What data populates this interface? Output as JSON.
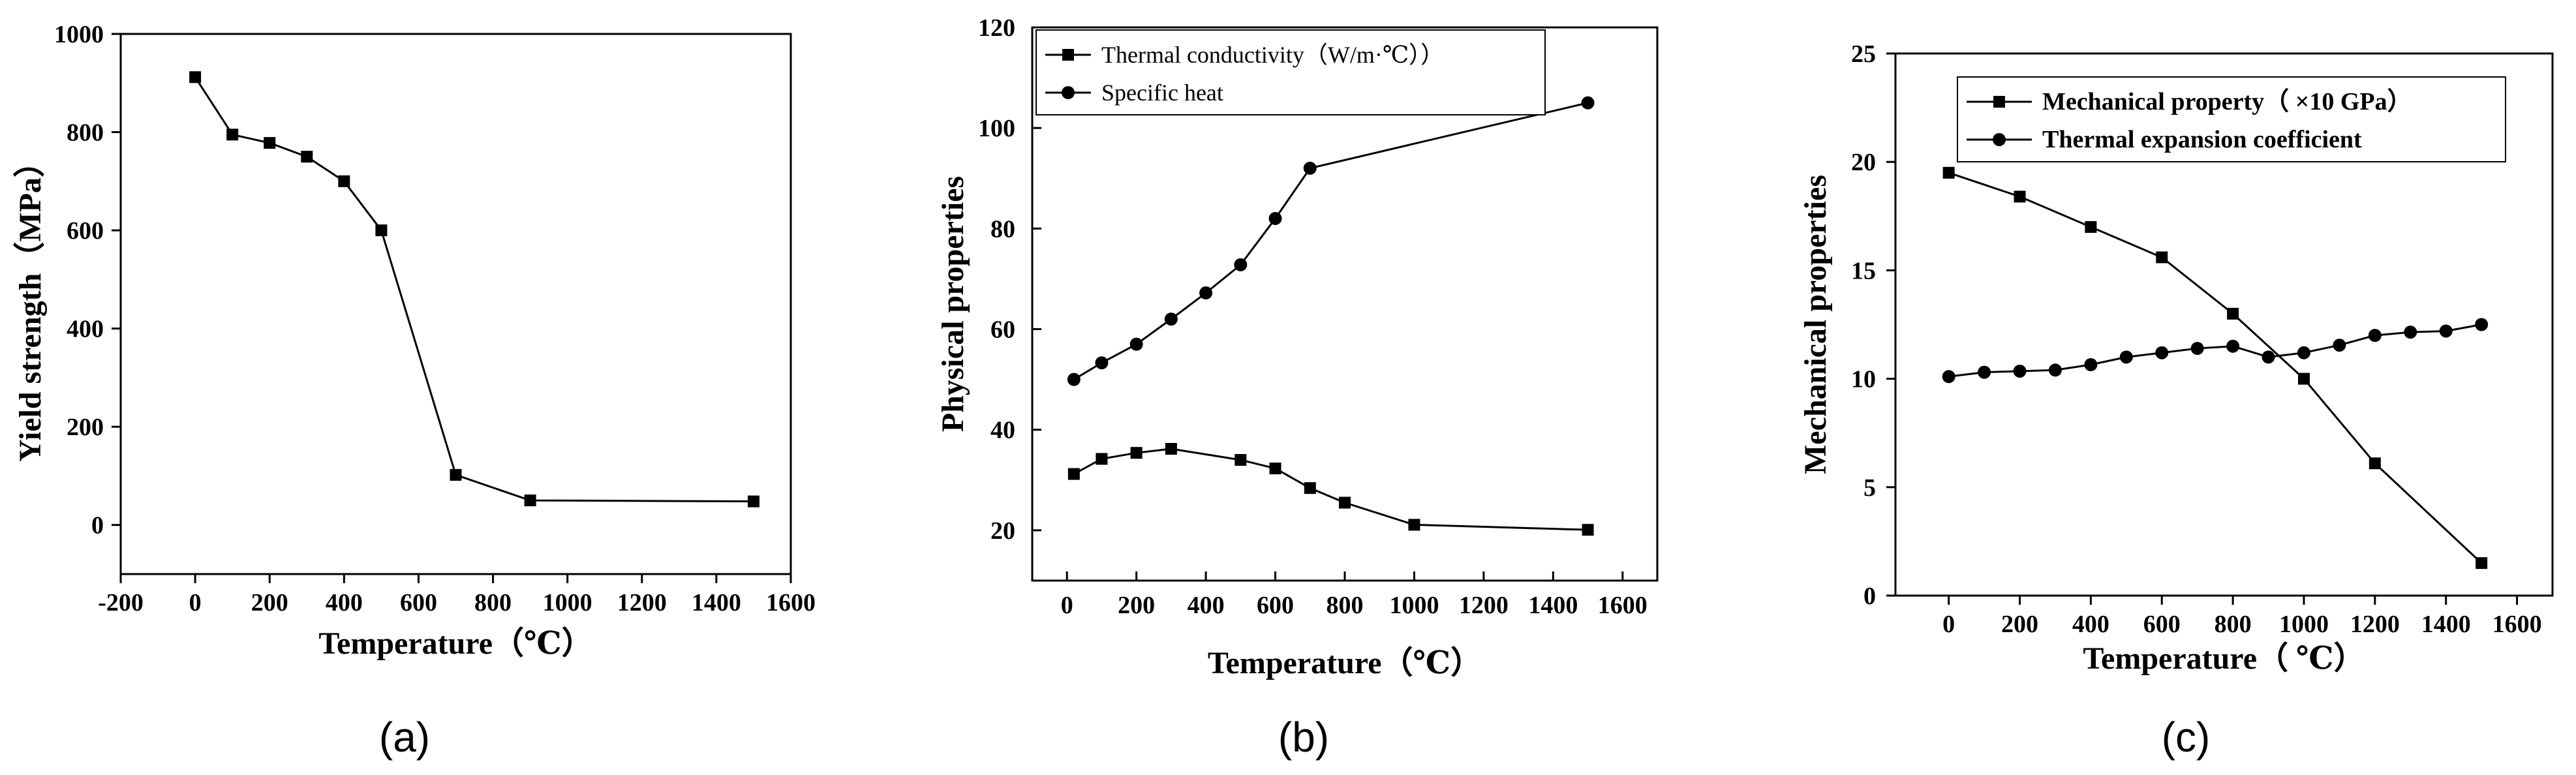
{
  "chart_data": [
    {
      "type": "line",
      "panel_label": "(a)",
      "xlabel": "Temperature（℃）",
      "ylabel": "Yield strength（MPa）",
      "xlim": [
        -200,
        1600
      ],
      "ylim": [
        -100,
        1000
      ],
      "xticks": [
        -200,
        0,
        200,
        400,
        600,
        800,
        1000,
        1200,
        1400,
        1600
      ],
      "yticks": [
        0,
        200,
        400,
        600,
        800,
        1000
      ],
      "legend": "none",
      "series": [
        {
          "name": "Yield strength",
          "marker": "square",
          "x": [
            0,
            100,
            200,
            300,
            400,
            500,
            700,
            900,
            1500
          ],
          "y": [
            912,
            795,
            778,
            750,
            700,
            600,
            102,
            50,
            48
          ]
        }
      ]
    },
    {
      "type": "line",
      "panel_label": "(b)",
      "xlabel": "Temperature（℃）",
      "ylabel": "Physical properties",
      "xlim": [
        -100,
        1700
      ],
      "ylim": [
        10,
        120
      ],
      "xticks": [
        0,
        200,
        400,
        600,
        800,
        1000,
        1200,
        1400,
        1600
      ],
      "yticks": [
        20,
        40,
        60,
        80,
        100,
        120
      ],
      "legend": "top-left",
      "series": [
        {
          "name": "Thermal conductivity（W/m·℃））",
          "marker": "square",
          "x": [
            20,
            100,
            200,
            300,
            500,
            600,
            700,
            800,
            1000,
            1500
          ],
          "y": [
            31.2,
            34.2,
            35.4,
            36.2,
            34.0,
            32.3,
            28.4,
            25.5,
            21.1,
            20.1
          ]
        },
        {
          "name": "Specific heat",
          "marker": "circle",
          "x": [
            20,
            100,
            200,
            300,
            400,
            500,
            600,
            700,
            1500
          ],
          "y": [
            50,
            53.3,
            57,
            62,
            67.2,
            72.8,
            82,
            92,
            105
          ]
        }
      ]
    },
    {
      "type": "line",
      "panel_label": "(c)",
      "xlabel": "Temperature（ ℃）",
      "ylabel": "Mechanical properties",
      "xlim": [
        -150,
        1700
      ],
      "ylim": [
        0,
        25
      ],
      "xticks": [
        0,
        200,
        400,
        600,
        800,
        1000,
        1200,
        1400,
        1600
      ],
      "yticks": [
        0,
        5,
        10,
        15,
        20,
        25
      ],
      "legend": "top-center",
      "series": [
        {
          "name": "Mechanical property（ ×10 GPa）",
          "marker": "square",
          "x": [
            0,
            200,
            400,
            600,
            800,
            1000,
            1200,
            1500
          ],
          "y": [
            19.5,
            18.4,
            17.0,
            15.6,
            13.0,
            10.0,
            6.1,
            1.5
          ]
        },
        {
          "name": "Thermal expansion coefficient",
          "marker": "circle",
          "x": [
            0,
            100,
            200,
            300,
            400,
            500,
            600,
            700,
            800,
            900,
            1000,
            1100,
            1200,
            1300,
            1400,
            1500
          ],
          "y": [
            10.1,
            10.3,
            10.35,
            10.4,
            10.65,
            11.0,
            11.2,
            11.4,
            11.5,
            11.0,
            11.2,
            11.55,
            12.0,
            12.15,
            12.2,
            12.5
          ]
        }
      ]
    }
  ]
}
